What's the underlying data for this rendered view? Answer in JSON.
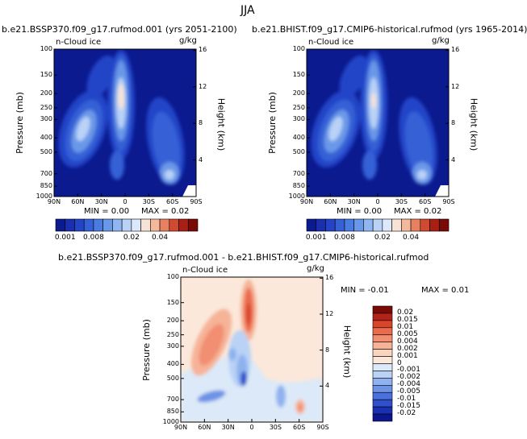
{
  "season": "JJA",
  "chart_data": [
    {
      "type": "heatmap",
      "title": "b.e21.BSSP370.f09_g17.rufmod.001 (yrs 2051-2100)",
      "variable": "n-Cloud ice",
      "units": "g/kg",
      "ylabel": "Pressure (mb)",
      "y2label": "Height (km)",
      "x_ticks": [
        "90N",
        "60N",
        "30N",
        "0",
        "30S",
        "60S",
        "90S"
      ],
      "y_ticks": [
        "100",
        "150",
        "200",
        "250",
        "300",
        "400",
        "500",
        "700",
        "850",
        "1000"
      ],
      "y2_ticks": [
        "16",
        "12",
        "8",
        "4"
      ],
      "min_text": "MIN =   0.00",
      "max_text": "MAX =   0.02",
      "colorbar_labels": [
        "0.001",
        "0.008",
        "0.02",
        "0.04"
      ]
    },
    {
      "type": "heatmap",
      "title": "b.e21.BHIST.f09_g17.CMIP6-historical.rufmod (yrs 1965-2014)",
      "variable": "n-Cloud ice",
      "units": "g/kg",
      "ylabel": "Pressure (mb)",
      "y2label": "Height (km)",
      "x_ticks": [
        "90N",
        "60N",
        "30N",
        "0",
        "30S",
        "60S",
        "90S"
      ],
      "y_ticks": [
        "100",
        "150",
        "200",
        "250",
        "300",
        "400",
        "500",
        "700",
        "850",
        "1000"
      ],
      "y2_ticks": [
        "16",
        "12",
        "8",
        "4"
      ],
      "min_text": "MIN =   0.00",
      "max_text": "MAX =   0.02",
      "colorbar_labels": [
        "0.001",
        "0.008",
        "0.02",
        "0.04"
      ]
    },
    {
      "type": "heatmap",
      "title": "b.e21.BSSP370.f09_g17.rufmod.001 - b.e21.BHIST.f09_g17.CMIP6-historical.rufmod",
      "variable": "n-Cloud ice",
      "units": "g/kg",
      "ylabel": "Pressure (mb)",
      "y2label": "Height (km)",
      "x_ticks": [
        "90N",
        "60N",
        "30N",
        "0",
        "30S",
        "60S",
        "90S"
      ],
      "y_ticks": [
        "100",
        "150",
        "200",
        "250",
        "300",
        "400",
        "500",
        "700",
        "850",
        "1000"
      ],
      "y2_ticks": [
        "16",
        "12",
        "8",
        "4"
      ],
      "min_text": "MIN =   -0.01",
      "max_text": "MAX =    0.01",
      "colorbar_labels": [
        "0.02",
        "0.015",
        "0.01",
        "0.005",
        "0.004",
        "0.002",
        "0.001",
        "0",
        "-0.001",
        "-0.002",
        "-0.004",
        "-0.005",
        "-0.01",
        "-0.015",
        "-0.02"
      ]
    }
  ],
  "colors": {
    "field_palette": [
      "#0b1a8f",
      "#1a2fb0",
      "#2444c8",
      "#3560d6",
      "#4a7be0",
      "#6a98e8",
      "#8fb6f0",
      "#b9d2f6",
      "#dde9fa",
      "#f7e3d6",
      "#f4b99a",
      "#e88062",
      "#d04a32",
      "#a81f14",
      "#7a0a05"
    ],
    "diff_palette": [
      "#7a0a05",
      "#b52218",
      "#d9442c",
      "#ea6a4c",
      "#f28e72",
      "#f6b398",
      "#f9d4bf",
      "#fbe8da",
      "#dce9f8",
      "#b9d2f6",
      "#8fb2ee",
      "#6d92e6",
      "#4a70db",
      "#2f4fcb",
      "#1a30b4",
      "#0c168f"
    ]
  }
}
